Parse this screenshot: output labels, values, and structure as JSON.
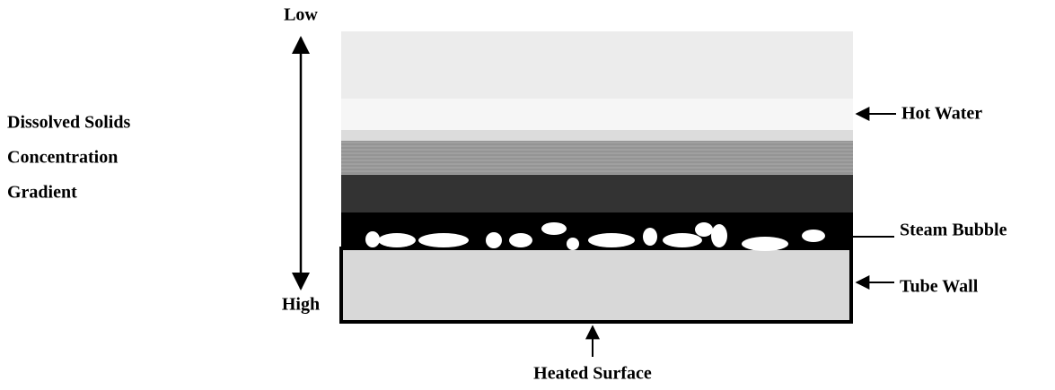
{
  "axis": {
    "low": "Low",
    "high": "High",
    "label": [
      "Dissolved Solids",
      "Concentration",
      "Gradient"
    ]
  },
  "labels": {
    "hot_water": "Hot Water",
    "steam_bubble": "Steam Bubble",
    "tube_wall": "Tube Wall",
    "heated_surface": "Heated Surface"
  }
}
